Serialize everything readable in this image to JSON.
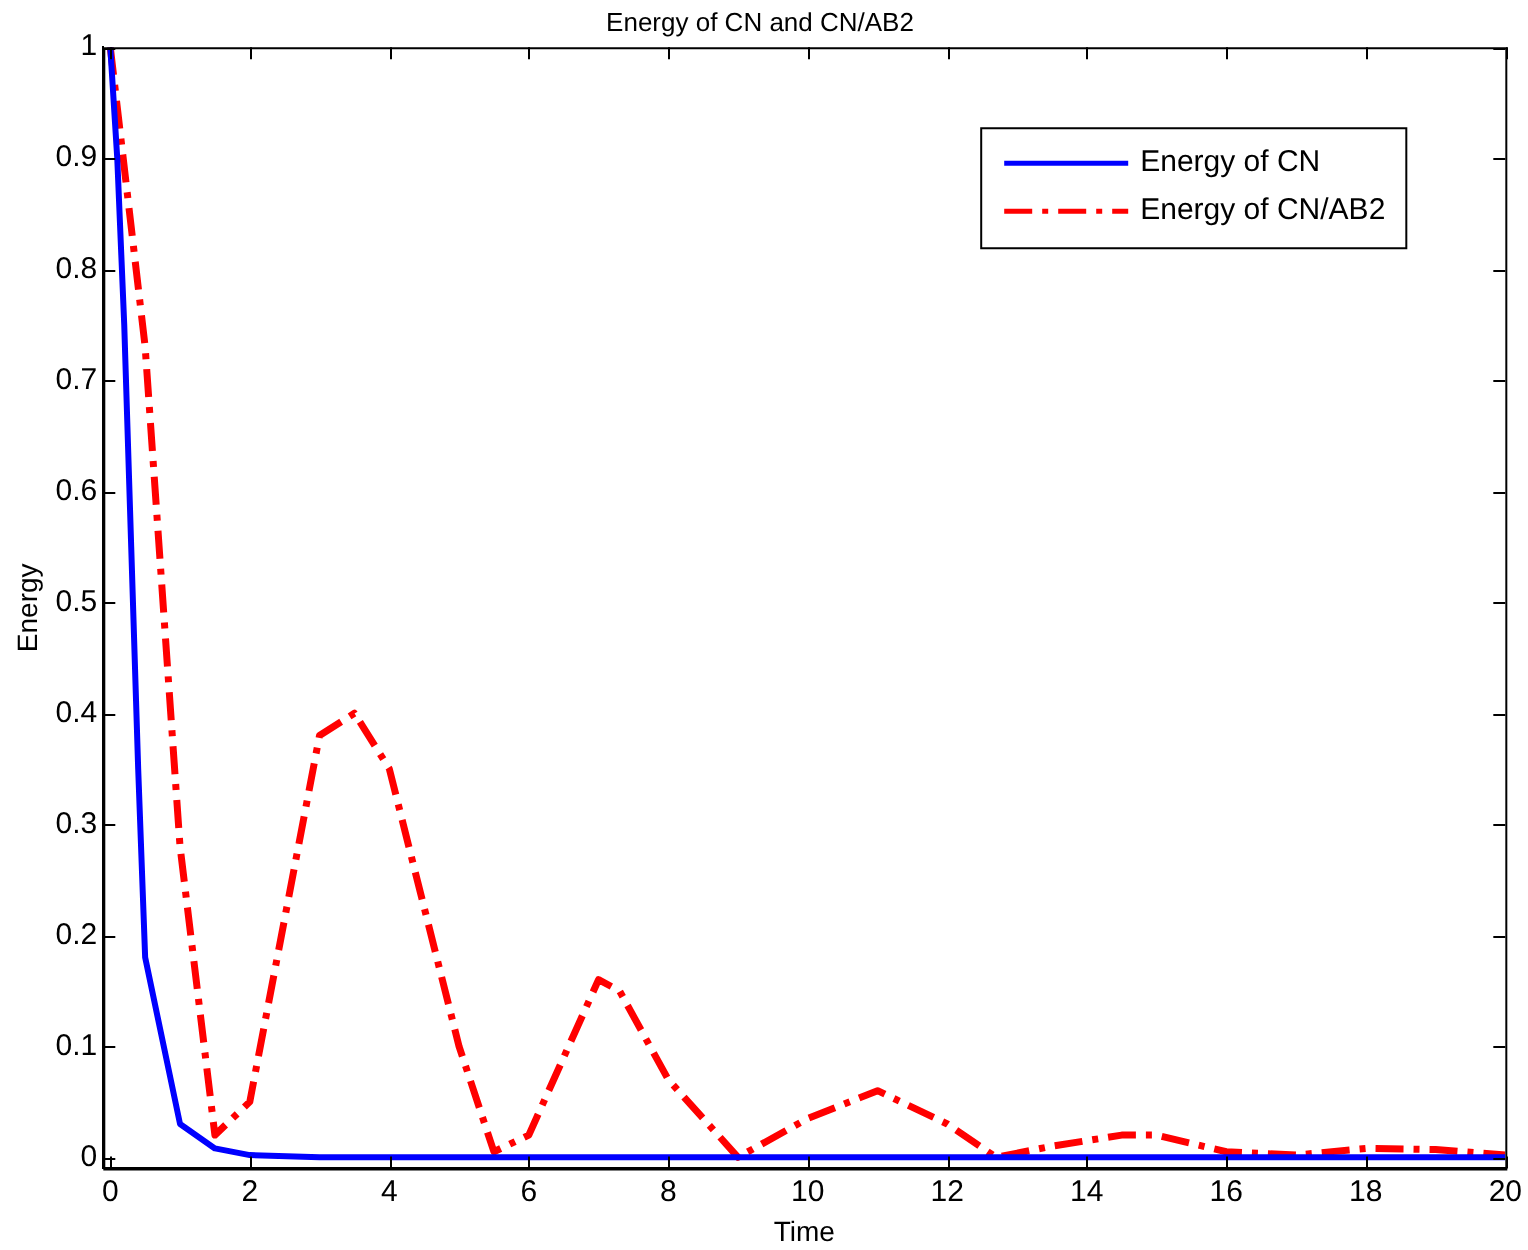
{
  "chart_data": {
    "type": "line",
    "title": "Energy of CN and CN/AB2",
    "xlabel": "Time",
    "ylabel": "Energy",
    "xlim": [
      -0.1,
      20
    ],
    "ylim": [
      -0.01,
      1
    ],
    "xticks": [
      0,
      2,
      4,
      6,
      8,
      10,
      12,
      14,
      16,
      18,
      20
    ],
    "yticks": [
      0,
      0.1,
      0.2,
      0.3,
      0.4,
      0.5,
      0.6,
      0.7,
      0.8,
      0.9,
      1
    ],
    "grid": false,
    "legend": "top right",
    "marker": "none",
    "series": [
      {
        "name": "Energy of CN",
        "color": "#0000ff",
        "line_style": "solid",
        "x": [
          0,
          0.1,
          0.2,
          0.3,
          0.4,
          0.5,
          1,
          1.5,
          2,
          3,
          20
        ],
        "values": [
          1,
          0.9,
          0.75,
          0.55,
          0.35,
          0.18,
          0.03,
          0.008,
          0.002,
          0,
          0
        ]
      },
      {
        "name": "Energy of CN/AB2",
        "color": "#ff0000",
        "line_style": "dashed",
        "x": [
          0,
          0.5,
          1,
          1.5,
          2,
          3,
          3.5,
          4,
          5,
          5.5,
          6,
          7,
          7.3,
          8,
          9,
          10,
          11,
          12,
          12.7,
          13.5,
          14.5,
          15,
          16,
          17,
          18,
          19,
          20
        ],
        "values": [
          1,
          0.73,
          0.28,
          0.02,
          0.05,
          0.38,
          0.4,
          0.35,
          0.1,
          0.005,
          0.02,
          0.16,
          0.15,
          0.07,
          0,
          0.035,
          0.06,
          0.03,
          0,
          0.01,
          0.02,
          0.02,
          0.005,
          0.002,
          0.008,
          0.007,
          0.002
        ]
      }
    ]
  }
}
